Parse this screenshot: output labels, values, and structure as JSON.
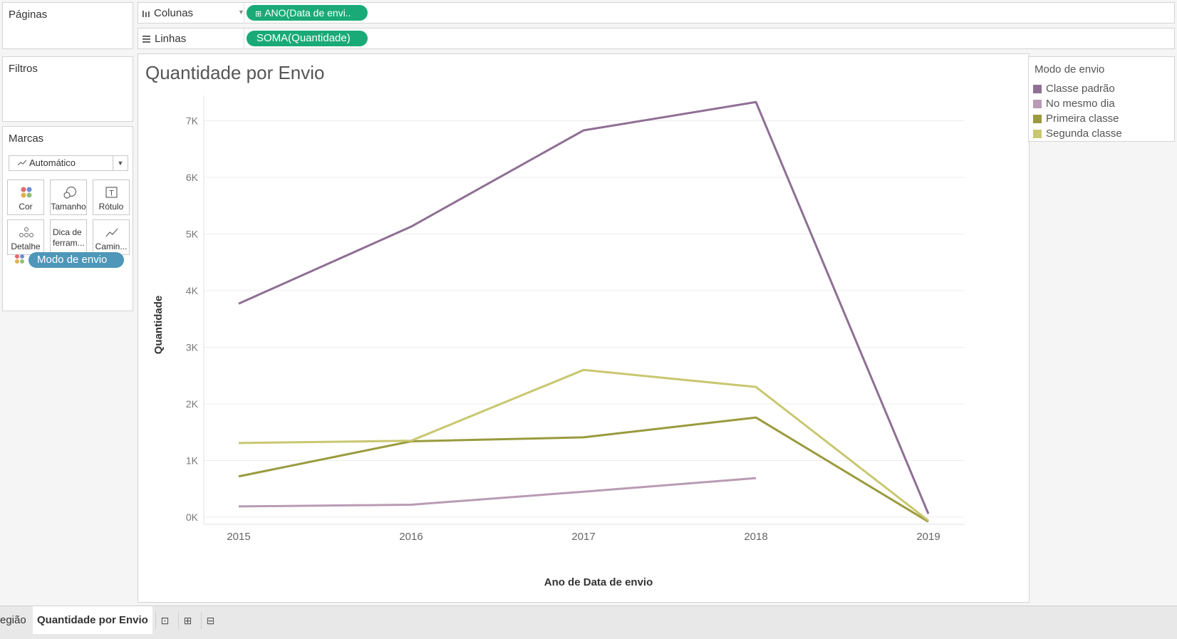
{
  "pages_panel": {
    "title": "Páginas"
  },
  "filters_panel": {
    "title": "Filtros"
  },
  "marks_panel": {
    "title": "Marcas",
    "mark_type": "Automático",
    "cards": [
      {
        "label": "Cor",
        "icon": "color-dots-icon"
      },
      {
        "label": "Tamanho",
        "icon": "size-icon"
      },
      {
        "label": "Rótulo",
        "icon": "label-icon"
      },
      {
        "label": "Detalhe",
        "icon": "detail-icon"
      },
      {
        "label": "Dica de ferram...",
        "icon": "tooltip-icon"
      },
      {
        "label": "Camin...",
        "icon": "path-icon"
      }
    ],
    "color_field": "Modo de envio"
  },
  "shelves": {
    "columns_label": "Colunas",
    "columns_pill": "ANO(Data de envi..",
    "rows_label": "Linhas",
    "rows_pill": "SOMA(Quantidade)"
  },
  "legend": {
    "title": "Modo de envio",
    "items": [
      {
        "label": "Classe padrão",
        "color": "#8f6f94"
      },
      {
        "label": "No mesmo dia",
        "color": "#b99bb5"
      },
      {
        "label": "Primeira classe",
        "color": "#9a9a3e"
      },
      {
        "label": "Segunda classe",
        "color": "#c9c770"
      }
    ]
  },
  "chart_data": {
    "type": "line",
    "title": "Quantidade por Envio",
    "xlabel": "Ano de Data de envio",
    "ylabel": "Quantidade",
    "x": [
      "2015",
      "2016",
      "2017",
      "2018",
      "2019"
    ],
    "y_ticks": [
      "0K",
      "1K",
      "2K",
      "3K",
      "4K",
      "5K",
      "6K",
      "7K"
    ],
    "ylim": [
      0,
      7700
    ],
    "grid": true,
    "series": [
      {
        "name": "Classe padrão",
        "color": "#8f6f94",
        "values": [
          3770,
          5130,
          6830,
          7330,
          60
        ]
      },
      {
        "name": "No mesmo dia",
        "color": "#b99bb5",
        "values": [
          190,
          220,
          450,
          690,
          null
        ]
      },
      {
        "name": "Primeira classe",
        "color": "#9a9a3e",
        "values": [
          720,
          1340,
          1410,
          1760,
          -80
        ]
      },
      {
        "name": "Segunda classe",
        "color": "#c9c770",
        "values": [
          1310,
          1350,
          2600,
          2300,
          -60
        ]
      }
    ]
  },
  "tabs": {
    "items": [
      {
        "label": "egião"
      },
      {
        "label": "Quantidade por Envio"
      }
    ],
    "new_worksheet_icon": "new-worksheet-icon",
    "new_dashboard_icon": "new-dashboard-icon",
    "new_story_icon": "new-story-icon"
  }
}
